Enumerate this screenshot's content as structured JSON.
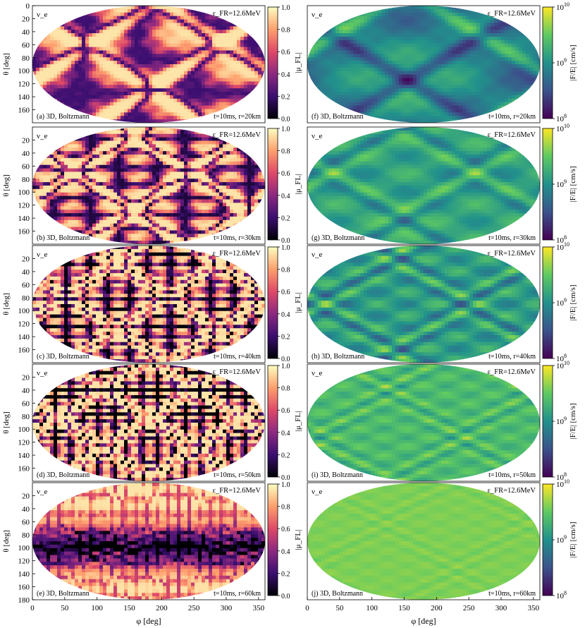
{
  "figure": {
    "left_column": {
      "ylabel": "θ [deg]",
      "colorbar_label": "|μ_FL|",
      "colorbar_ticks": [
        "0.0",
        "0.2",
        "0.4",
        "0.6",
        "0.8",
        "1.0"
      ],
      "colormap": [
        "#000004",
        "#3b0f70",
        "#8c2981",
        "#de4968",
        "#fe9f6d",
        "#fcfdbf"
      ]
    },
    "right_column": {
      "colorbar_label": "|F/E| [cm/s]",
      "colorbar_ticks": [
        "10^8",
        "10^9",
        "10^10"
      ],
      "colormap": [
        "#440154",
        "#3b528b",
        "#21918c",
        "#5ec962",
        "#fde725"
      ]
    },
    "xlabel": "φ [deg]"
  },
  "chart_data": [
    {
      "type": "heatmap",
      "panel": "(a) 3D, Boltzmann",
      "species": "ν_e",
      "energy": "ε_FR=12.6MeV",
      "time_radius": "t=10ms, r=20km",
      "quantity": "|μ_FL|",
      "clim": [
        0,
        1
      ],
      "pattern": "narrow orange crossing lines on pale background",
      "y_ticks": [
        0,
        20,
        40,
        60,
        80,
        100,
        120,
        140,
        160
      ],
      "x_ticks": []
    },
    {
      "type": "heatmap",
      "panel": "(b) 3D, Boltzmann",
      "species": "ν_e",
      "energy": "ε_FR=12.6MeV",
      "time_radius": "t=10ms, r=30km",
      "quantity": "|μ_FL|",
      "clim": [
        0,
        1
      ],
      "pattern": "denser crossing lines",
      "y_ticks": [
        20,
        40,
        60,
        80,
        100,
        120,
        140,
        160
      ],
      "x_ticks": []
    },
    {
      "type": "heatmap",
      "panel": "(c) 3D, Boltzmann",
      "species": "ν_e",
      "energy": "ε_FR=12.6MeV",
      "time_radius": "t=10ms, r=40km",
      "quantity": "|μ_FL|",
      "clim": [
        0,
        1
      ],
      "pattern": "dense crossing lines with dark spots",
      "y_ticks": [
        20,
        40,
        60,
        80,
        100,
        120,
        140,
        160
      ],
      "x_ticks": []
    },
    {
      "type": "heatmap",
      "panel": "(d) 3D, Boltzmann",
      "species": "ν_e",
      "energy": "ε_FR=12.6MeV",
      "time_radius": "t=10ms, r=50km",
      "quantity": "|μ_FL|",
      "clim": [
        0,
        1
      ],
      "pattern": "cellular network of dark lines",
      "y_ticks": [
        20,
        40,
        60,
        80,
        100,
        120,
        140,
        160
      ],
      "x_ticks": []
    },
    {
      "type": "heatmap",
      "panel": "(e) 3D, Boltzmann",
      "species": "ν_e",
      "energy": "ε_FR=12.6MeV",
      "time_radius": "t=10ms, r=60km",
      "quantity": "|μ_FL|",
      "clim": [
        0,
        1
      ],
      "pattern": "large dark equatorial band",
      "y_ticks": [
        20,
        40,
        60,
        80,
        100,
        120,
        140,
        160,
        180
      ],
      "x_ticks": [
        0,
        50,
        100,
        150,
        200,
        250,
        300,
        350
      ]
    },
    {
      "type": "heatmap",
      "panel": "(f) 3D, Boltzmann",
      "species": "ν_e",
      "energy": "ε_FR=12.6MeV",
      "time_radius": "t=10ms, r=20km",
      "quantity": "|F/E|",
      "clim": [
        100000000.0,
        10000000000.0
      ],
      "pattern": "teal with yellow-green blobs",
      "x_ticks": []
    },
    {
      "type": "heatmap",
      "panel": "(g) 3D, Boltzmann",
      "species": "ν_e",
      "energy": "ε_FR=12.6MeV",
      "time_radius": "t=10ms, r=30km",
      "quantity": "|F/E|",
      "clim": [
        100000000.0,
        10000000000.0
      ],
      "pattern": "green cells",
      "x_ticks": []
    },
    {
      "type": "heatmap",
      "panel": "(h) 3D, Boltzmann",
      "species": "ν_e",
      "energy": "ε_FR=12.6MeV",
      "time_radius": "t=10ms, r=40km",
      "quantity": "|F/E|",
      "clim": [
        100000000.0,
        10000000000.0
      ],
      "pattern": "green cells with dark boundaries",
      "x_ticks": []
    },
    {
      "type": "heatmap",
      "panel": "(i) 3D, Boltzmann",
      "species": "ν_e",
      "energy": "ε_FR=12.6MeV",
      "time_radius": "t=10ms, r=50km",
      "quantity": "|F/E|",
      "clim": [
        100000000.0,
        10000000000.0
      ],
      "pattern": "light green cells",
      "x_ticks": []
    },
    {
      "type": "heatmap",
      "panel": "(j) 3D, Boltzmann",
      "species": "ν_e",
      "energy": "ε_FR=12.6MeV",
      "time_radius": "t=10ms, r=60km",
      "quantity": "|F/E|",
      "clim": [
        100000000.0,
        10000000000.0
      ],
      "pattern": "nearly uniform yellow-green",
      "x_ticks": [
        0,
        50,
        100,
        150,
        200,
        250,
        300,
        350
      ]
    }
  ]
}
